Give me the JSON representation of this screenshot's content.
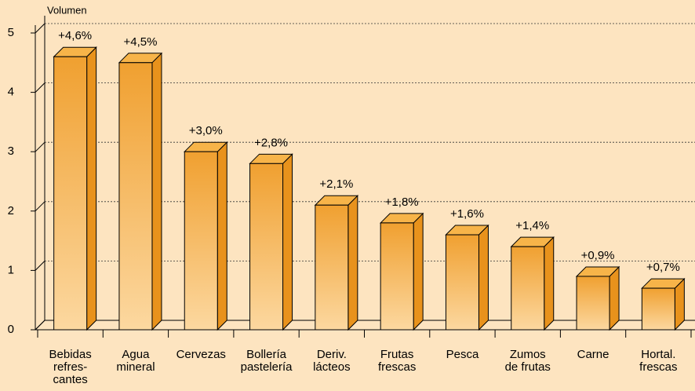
{
  "chart_data": {
    "type": "bar3d",
    "y_axis_label": "Volumen",
    "categories": [
      [
        "Bebidas",
        "refres-",
        "cantes"
      ],
      [
        "Agua",
        "mineral"
      ],
      [
        "Cervezas"
      ],
      [
        "Bollería",
        "pastelería"
      ],
      [
        "Deriv.",
        "lácteos"
      ],
      [
        "Frutas",
        "frescas"
      ],
      [
        "Pesca"
      ],
      [
        "Zumos",
        "de frutas"
      ],
      [
        "Carne"
      ],
      [
        "Hortal.",
        "frescas"
      ]
    ],
    "values": [
      4.6,
      4.5,
      3.0,
      2.8,
      2.1,
      1.8,
      1.6,
      1.4,
      0.9,
      0.7
    ],
    "value_labels": [
      "+4,6%",
      "+4,5%",
      "+3,0%",
      "+2,8%",
      "+2,1%",
      "+1,8%",
      "+1,6%",
      "+1,4%",
      "+0,9%",
      "+0,7%"
    ],
    "color": "#f0a030",
    "ylim": [
      0,
      5
    ],
    "yticks": [
      0,
      1,
      2,
      3,
      4,
      5
    ],
    "grid": true
  }
}
